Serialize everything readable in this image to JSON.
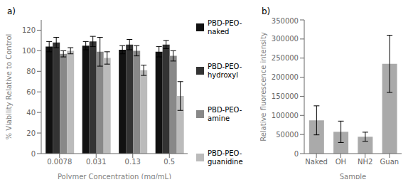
{
  "chart_data": [
    {
      "type": "bar",
      "title": "a)",
      "categories": [
        "0.0078",
        "0.031",
        "0.13",
        "0.5"
      ],
      "series": [
        {
          "name": "PBD-PEO-\nnaked",
          "color": "#111111",
          "values": [
            104,
            105,
            101,
            99
          ],
          "errors": [
            5,
            4,
            4,
            5
          ]
        },
        {
          "name": "PBD-PEO-\nhydroxyl",
          "color": "#333333",
          "values": [
            108,
            109,
            106,
            106
          ],
          "errors": [
            5,
            5,
            5,
            4
          ]
        },
        {
          "name": "PBD-PEO-\namine",
          "color": "#888888",
          "values": [
            97,
            99,
            100,
            95
          ],
          "errors": [
            3,
            14,
            5,
            5
          ]
        },
        {
          "name": "PBD-PEO-\nguanidine",
          "color": "#bbbbbb",
          "values": [
            100,
            93,
            81,
            56
          ],
          "errors": [
            3,
            6,
            5,
            14
          ]
        }
      ],
      "xlabel": "Polymer Concentration (mg/mL)",
      "ylabel": "% Viability Relative to Control",
      "ylim": [
        0,
        130
      ],
      "yticks": [
        0,
        20,
        40,
        60,
        80,
        100,
        120
      ],
      "grid": false,
      "legend": "right"
    },
    {
      "type": "bar",
      "title": "b)",
      "categories": [
        "Naked",
        "OH",
        "NH2",
        "Guan"
      ],
      "values": [
        87000,
        57000,
        44000,
        235000
      ],
      "errors": [
        38000,
        28000,
        12000,
        75000
      ],
      "color": "#aaaaaa",
      "xlabel": "Sample",
      "ylabel": "Relative fluorescence intensity",
      "ylim": [
        0,
        350000
      ],
      "yticks": [
        0,
        50000,
        100000,
        150000,
        200000,
        250000,
        300000,
        350000
      ],
      "grid": false
    }
  ]
}
